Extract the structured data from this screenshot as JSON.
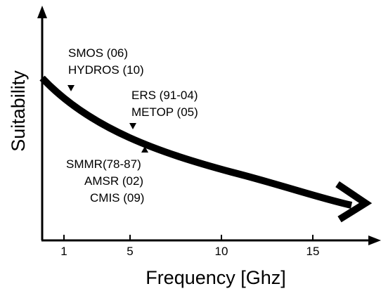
{
  "axes": {
    "x_title": "Frequency [Ghz]",
    "y_title": "Suitability",
    "x_ticks": [
      {
        "label": "1",
        "value": 1
      },
      {
        "label": "5",
        "value": 5
      },
      {
        "label": "10",
        "value": 10
      },
      {
        "label": "15",
        "value": 15
      }
    ]
  },
  "annotations": [
    {
      "lines": [
        "SMOS (06)",
        "HYDROS (10)"
      ],
      "marker": "down"
    },
    {
      "lines": [
        "ERS (91-04)",
        "METOP (05)"
      ],
      "marker": "down"
    },
    {
      "lines": [
        "SMMR(78-87)",
        "AMSR (02)",
        "CMIS (09)"
      ],
      "marker": "up"
    }
  ],
  "colors": {
    "ink": "#000000",
    "background": "#ffffff"
  }
}
